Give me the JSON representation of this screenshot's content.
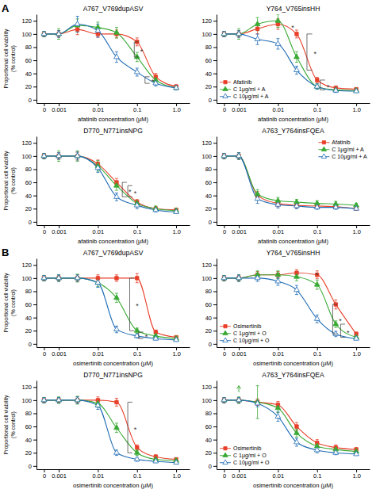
{
  "chart_data": [
    {
      "type": "scatter",
      "panel_label": "A",
      "title": "A767_V769dupASV",
      "xlabel": "afatinib concentration (μM)",
      "ylabel": "Proportional cell viability\n(% control)",
      "log": "x",
      "xlim": [
        0.00027,
        2.2
      ],
      "xticks": [
        {
          "value": 0.00042,
          "label": "0"
        },
        0.001,
        0.01,
        0.1,
        {
          "value": 1.0,
          "label": "1.0"
        }
      ],
      "ylim": [
        -5,
        130
      ],
      "yticks": [
        0,
        20,
        40,
        60,
        80,
        100,
        120
      ],
      "x": [
        0.00042,
        0.001,
        0.003,
        0.01,
        0.03,
        0.1,
        0.3,
        1.0
      ],
      "series": [
        {
          "color": "#e8402a",
          "marker": "square",
          "line_style": "solid",
          "values": [
            100,
            100,
            107,
            100,
            100,
            88,
            35,
            20
          ],
          "errors": [
            4,
            5,
            8,
            5,
            6,
            6,
            5,
            3
          ]
        },
        {
          "color": "#3aaa35",
          "marker": "triangle",
          "line_style": "solid",
          "values": [
            100,
            100,
            113,
            110,
            102,
            65,
            30,
            18
          ],
          "errors": [
            4,
            8,
            10,
            8,
            8,
            7,
            4,
            3
          ]
        },
        {
          "color": "#1f6cb5",
          "marker": "triangle-open",
          "line_style": "solid",
          "values": [
            100,
            100,
            115,
            105,
            65,
            42,
            25,
            18
          ],
          "errors": [
            4,
            5,
            12,
            10,
            8,
            6,
            4,
            3
          ]
        }
      ],
      "annotations": [
        {
          "text": "*",
          "x": [
            0.085,
            0.11
          ],
          "y": [
            65,
            88
          ]
        },
        {
          "text": "*",
          "x": [
            0.16,
            0.21
          ],
          "y": [
            25,
            35
          ]
        }
      ]
    },
    {
      "type": "scatter",
      "title": "Y764_V765insHH",
      "xlabel": "afatinib concentration (μM)",
      "log": "x",
      "xlim": [
        0.00027,
        2.2
      ],
      "xticks": [
        {
          "value": 0.00042,
          "label": "0"
        },
        0.001,
        0.01,
        0.1,
        {
          "value": 1.0,
          "label": "1.0"
        }
      ],
      "ylim": [
        -5,
        130
      ],
      "yticks": [
        0,
        20,
        40,
        60,
        80,
        100,
        120
      ],
      "legend": "lower left",
      "x": [
        0.00042,
        0.001,
        0.003,
        0.01,
        0.03,
        0.1,
        0.3,
        1.0
      ],
      "series": [
        {
          "name": "Afatinib",
          "color": "#e8402a",
          "marker": "square",
          "line_style": "solid",
          "values": [
            100,
            100,
            108,
            115,
            100,
            30,
            18,
            16
          ],
          "errors": [
            4,
            5,
            8,
            8,
            6,
            4,
            3,
            2
          ]
        },
        {
          "name": "C 1μg/ml + A",
          "color": "#3aaa35",
          "marker": "triangle",
          "line_style": "solid",
          "values": [
            100,
            100,
            115,
            120,
            65,
            20,
            15,
            14
          ],
          "errors": [
            4,
            8,
            10,
            10,
            8,
            4,
            3,
            2
          ]
        },
        {
          "name": "C 10μg/ml + A",
          "color": "#1f6cb5",
          "marker": "triangle-open",
          "line_style": "solid",
          "values": [
            100,
            100,
            92,
            85,
            45,
            20,
            14,
            13
          ],
          "errors": [
            4,
            5,
            8,
            8,
            6,
            4,
            3,
            2
          ]
        }
      ],
      "annotations": [
        {
          "text": "*",
          "x": 0.022,
          "y": 112
        },
        {
          "text": "*",
          "x": [
            0.055,
            0.075
          ],
          "y": [
            45,
            100
          ]
        },
        {
          "text": "*",
          "x": [
            0.12,
            0.16
          ],
          "y": [
            15,
            30
          ]
        }
      ]
    },
    {
      "type": "scatter",
      "title": "D770_N771insNPG",
      "xlabel": "afatinib concentration (μM)",
      "ylabel": "Proportional cell viability\n(% control)",
      "log": "x",
      "xlim": [
        0.00027,
        2.2
      ],
      "xticks": [
        {
          "value": 0.00042,
          "label": "0"
        },
        0.001,
        0.01,
        0.1,
        {
          "value": 1.0,
          "label": "1.0"
        }
      ],
      "ylim": [
        -5,
        130
      ],
      "yticks": [
        0,
        20,
        40,
        60,
        80,
        100,
        120
      ],
      "x": [
        0.00042,
        0.001,
        0.003,
        0.01,
        0.03,
        0.1,
        0.3,
        1.0
      ],
      "series": [
        {
          "color": "#e8402a",
          "marker": "square",
          "line_style": "solid",
          "values": [
            100,
            100,
            100,
            88,
            60,
            30,
            20,
            18
          ],
          "errors": [
            4,
            5,
            6,
            6,
            6,
            4,
            3,
            2
          ]
        },
        {
          "color": "#3aaa35",
          "marker": "triangle",
          "line_style": "solid",
          "values": [
            100,
            100,
            100,
            85,
            55,
            28,
            20,
            17
          ],
          "errors": [
            4,
            8,
            8,
            8,
            7,
            5,
            4,
            3
          ]
        },
        {
          "color": "#1f6cb5",
          "marker": "triangle-open",
          "line_style": "solid",
          "values": [
            100,
            100,
            100,
            82,
            38,
            25,
            18,
            15
          ],
          "errors": [
            4,
            5,
            6,
            7,
            6,
            5,
            3,
            2
          ]
        }
      ],
      "annotations": [
        {
          "text": "*",
          "x": [
            0.042,
            0.055
          ],
          "y": [
            38,
            60
          ]
        },
        {
          "text": "*",
          "x": [
            0.058,
            0.076
          ],
          "y": [
            38,
            55
          ]
        }
      ]
    },
    {
      "type": "scatter",
      "title": "A763_Y764insFQEA",
      "xlabel": "afatinib concentration (μM)",
      "log": "x",
      "xlim": [
        0.00027,
        2.2
      ],
      "xticks": [
        {
          "value": 0.00042,
          "label": "0"
        },
        0.001,
        0.01,
        0.1,
        {
          "value": 1.0,
          "label": "1.0"
        }
      ],
      "ylim": [
        -5,
        130
      ],
      "yticks": [
        0,
        20,
        40,
        60,
        80,
        100,
        120
      ],
      "legend": "upper right",
      "x": [
        0.00042,
        0.001,
        0.003,
        0.01,
        0.03,
        0.1,
        0.3,
        1.0
      ],
      "series": [
        {
          "name": "Afatinib",
          "color": "#e8402a",
          "marker": "square",
          "line_style": "solid",
          "values": [
            100,
            100,
            40,
            28,
            25,
            24,
            23,
            20
          ],
          "errors": [
            4,
            5,
            6,
            5,
            4,
            3,
            3,
            2
          ]
        },
        {
          "name": "C 1μg/ml + A",
          "color": "#3aaa35",
          "marker": "triangle",
          "line_style": "solid",
          "values": [
            100,
            100,
            42,
            32,
            30,
            28,
            27,
            25
          ],
          "errors": [
            4,
            5,
            7,
            5,
            4,
            4,
            4,
            3
          ]
        },
        {
          "name": "C 10μg/ml + A",
          "color": "#1f6cb5",
          "marker": "triangle-open",
          "line_style": "solid",
          "values": [
            100,
            100,
            35,
            26,
            24,
            22,
            22,
            20
          ],
          "errors": [
            4,
            5,
            7,
            5,
            4,
            3,
            3,
            2
          ]
        }
      ]
    },
    {
      "type": "scatter",
      "panel_label": "B",
      "title": "A767_V769dupASV",
      "xlabel": "osimertinib concentration (μM)",
      "ylabel": "Proportional cell viability\n(% control)",
      "log": "x",
      "xlim": [
        0.00027,
        2.2
      ],
      "xticks": [
        {
          "value": 0.00042,
          "label": "0"
        },
        0.001,
        0.01,
        0.1,
        {
          "value": 1.0,
          "label": "1.0"
        }
      ],
      "ylim": [
        -5,
        130
      ],
      "yticks": [
        0,
        20,
        40,
        60,
        80,
        100,
        120
      ],
      "x": [
        0.00042,
        0.001,
        0.003,
        0.01,
        0.03,
        0.1,
        0.3,
        1.0
      ],
      "series": [
        {
          "color": "#e8402a",
          "marker": "square",
          "line_style": "solid",
          "values": [
            100,
            100,
            100,
            100,
            100,
            100,
            18,
            10
          ],
          "errors": [
            4,
            4,
            5,
            5,
            5,
            7,
            3,
            2
          ]
        },
        {
          "color": "#3aaa35",
          "marker": "triangle",
          "line_style": "solid",
          "values": [
            100,
            100,
            100,
            93,
            70,
            20,
            12,
            8
          ],
          "errors": [
            4,
            5,
            6,
            6,
            7,
            4,
            3,
            2
          ]
        },
        {
          "color": "#1f6cb5",
          "marker": "triangle-open",
          "line_style": "solid",
          "values": [
            100,
            100,
            100,
            93,
            22,
            12,
            8,
            6
          ],
          "errors": [
            4,
            5,
            5,
            7,
            5,
            3,
            2,
            2
          ]
        }
      ],
      "annotations": [
        {
          "text": "*",
          "x": [
            0.065,
            0.085
          ],
          "y": [
            20,
            100
          ]
        },
        {
          "text": "*",
          "x": [
            0.11,
            0.145
          ],
          "y": [
            8,
            18
          ]
        }
      ]
    },
    {
      "type": "scatter",
      "title": "Y764_V765insHH",
      "xlabel": "osimertinib concentration (μM)",
      "log": "x",
      "xlim": [
        0.00027,
        2.2
      ],
      "xticks": [
        {
          "value": 0.00042,
          "label": "0"
        },
        0.001,
        0.01,
        0.1,
        {
          "value": 1.0,
          "label": "1.0"
        }
      ],
      "ylim": [
        -5,
        130
      ],
      "yticks": [
        0,
        20,
        40,
        60,
        80,
        100,
        120
      ],
      "legend": "lower left",
      "x": [
        0.00042,
        0.001,
        0.003,
        0.01,
        0.03,
        0.1,
        0.3,
        1.0
      ],
      "series": [
        {
          "name": "Osimertinib",
          "color": "#e8402a",
          "marker": "square",
          "line_style": "solid",
          "values": [
            100,
            100,
            105,
            105,
            108,
            105,
            60,
            15
          ],
          "errors": [
            4,
            4,
            5,
            5,
            5,
            6,
            7,
            3
          ]
        },
        {
          "name": "C 1μg/ml + O",
          "color": "#3aaa35",
          "marker": "triangle",
          "line_style": "solid",
          "values": [
            100,
            100,
            105,
            105,
            102,
            90,
            30,
            10
          ],
          "errors": [
            4,
            5,
            6,
            6,
            6,
            7,
            5,
            3
          ]
        },
        {
          "name": "C 10μg/ml + O",
          "color": "#1f6cb5",
          "marker": "triangle-open",
          "line_style": "solid",
          "values": [
            100,
            100,
            100,
            95,
            82,
            38,
            15,
            8
          ],
          "errors": [
            4,
            5,
            5,
            6,
            7,
            6,
            4,
            2
          ]
        }
      ],
      "annotations": [
        {
          "text": "*",
          "x": 0.09,
          "y": 108
        },
        {
          "text": "*",
          "x": [
            0.25,
            0.33
          ],
          "y": [
            15,
            60
          ]
        },
        {
          "text": "*",
          "x": [
            0.4,
            0.52
          ],
          "y": [
            10,
            30
          ]
        }
      ]
    },
    {
      "type": "scatter",
      "title": "D770_N771insNPG",
      "xlabel": "osimertinib concentration (μM)",
      "ylabel": "Proportional cell viability\n(% control)",
      "log": "x",
      "xlim": [
        0.00027,
        2.2
      ],
      "xticks": [
        {
          "value": 0.00042,
          "label": "0"
        },
        0.001,
        0.01,
        0.1,
        {
          "value": 1.0,
          "label": "1.0"
        }
      ],
      "ylim": [
        -5,
        130
      ],
      "yticks": [
        0,
        20,
        40,
        60,
        80,
        100,
        120
      ],
      "x": [
        0.00042,
        0.001,
        0.003,
        0.01,
        0.03,
        0.1,
        0.3,
        1.0
      ],
      "series": [
        {
          "color": "#e8402a",
          "marker": "square",
          "line_style": "solid",
          "values": [
            100,
            100,
            100,
            100,
            97,
            28,
            14,
            10
          ],
          "errors": [
            4,
            4,
            5,
            5,
            6,
            4,
            3,
            2
          ]
        },
        {
          "color": "#3aaa35",
          "marker": "triangle",
          "line_style": "solid",
          "values": [
            100,
            100,
            100,
            95,
            58,
            20,
            10,
            8
          ],
          "errors": [
            4,
            5,
            6,
            6,
            7,
            4,
            3,
            2
          ]
        },
        {
          "color": "#1f6cb5",
          "marker": "triangle-open",
          "line_style": "solid",
          "values": [
            100,
            100,
            100,
            92,
            20,
            10,
            7,
            5
          ],
          "errors": [
            4,
            4,
            5,
            6,
            4,
            3,
            2,
            2
          ]
        }
      ],
      "annotations": [
        {
          "text": "*",
          "x": [
            0.058,
            0.076
          ],
          "y": [
            20,
            97
          ]
        }
      ]
    },
    {
      "type": "scatter",
      "title": "A763_Y764insFQEA",
      "xlabel": "osimertinib concentration (μM)",
      "log": "x",
      "xlim": [
        0.00027,
        2.2
      ],
      "xticks": [
        {
          "value": 0.00042,
          "label": "0"
        },
        0.001,
        0.01,
        0.1,
        {
          "value": 1.0,
          "label": "1.0"
        }
      ],
      "ylim": [
        -5,
        130
      ],
      "yticks": [
        0,
        20,
        40,
        60,
        80,
        100,
        120
      ],
      "legend": "lower left",
      "x": [
        0.00042,
        0.001,
        0.003,
        0.01,
        0.03,
        0.1,
        0.3,
        1.0
      ],
      "series": [
        {
          "name": "Osimertinib",
          "color": "#e8402a",
          "marker": "square",
          "line_style": "solid",
          "values": [
            100,
            100,
            97,
            93,
            60,
            35,
            28,
            25
          ],
          "errors": [
            4,
            4,
            5,
            5,
            6,
            5,
            4,
            3
          ]
        },
        {
          "name": "C 1μg/ml + O",
          "color": "#3aaa35",
          "marker": "triangle",
          "line_style": "solid",
          "values": [
            100,
            100,
            97,
            88,
            50,
            30,
            25,
            22
          ],
          "errors": [
            4,
            5,
            25,
            7,
            6,
            5,
            4,
            3
          ]
        },
        {
          "name": "C 10μg/ml + O",
          "color": "#1f6cb5",
          "marker": "triangle-open",
          "line_style": "solid",
          "values": [
            100,
            100,
            95,
            75,
            36,
            24,
            20,
            18
          ],
          "errors": [
            4,
            4,
            5,
            7,
            6,
            4,
            3,
            2
          ]
        }
      ],
      "annotations": [
        {
          "x": 0.001,
          "y": [
            112,
            122
          ],
          "color": "#3aaa35"
        }
      ]
    }
  ]
}
